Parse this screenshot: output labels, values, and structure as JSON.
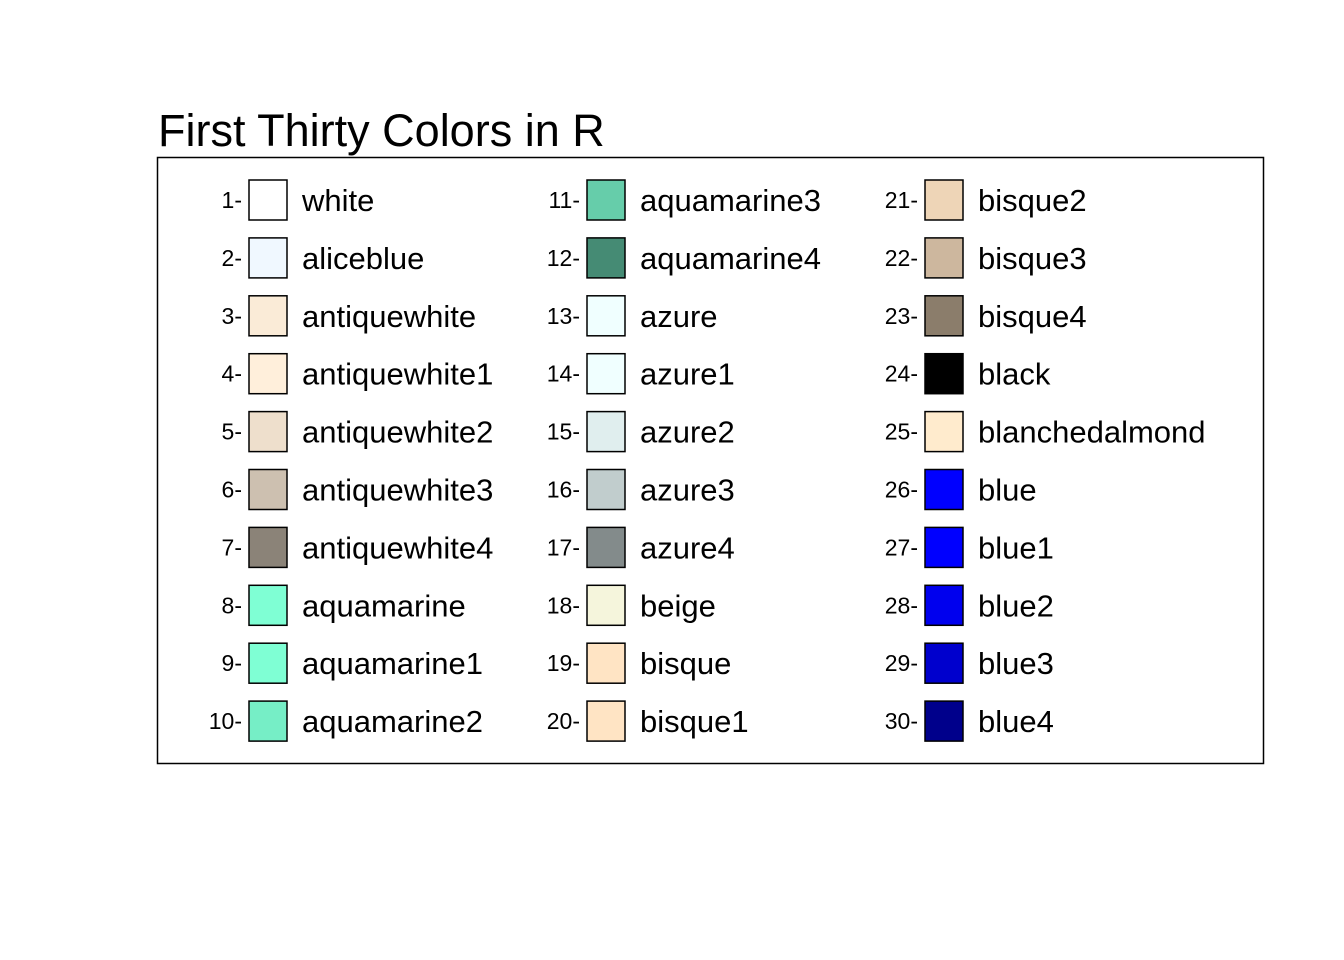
{
  "chart_data": {
    "type": "table",
    "title": "First Thirty Colors in R",
    "columns": 3,
    "rows_per_column": 10,
    "items": [
      {
        "index": 1,
        "label": "1-",
        "name": "white",
        "hex": "#FFFFFF"
      },
      {
        "index": 2,
        "label": "2-",
        "name": "aliceblue",
        "hex": "#F0F8FF"
      },
      {
        "index": 3,
        "label": "3-",
        "name": "antiquewhite",
        "hex": "#FAEBD7"
      },
      {
        "index": 4,
        "label": "4-",
        "name": "antiquewhite1",
        "hex": "#FFEFDB"
      },
      {
        "index": 5,
        "label": "5-",
        "name": "antiquewhite2",
        "hex": "#EEDFCC"
      },
      {
        "index": 6,
        "label": "6-",
        "name": "antiquewhite3",
        "hex": "#CDC0B0"
      },
      {
        "index": 7,
        "label": "7-",
        "name": "antiquewhite4",
        "hex": "#8B8378"
      },
      {
        "index": 8,
        "label": "8-",
        "name": "aquamarine",
        "hex": "#7FFFD4"
      },
      {
        "index": 9,
        "label": "9-",
        "name": "aquamarine1",
        "hex": "#7FFFD4"
      },
      {
        "index": 10,
        "label": "10-",
        "name": "aquamarine2",
        "hex": "#76EEC6"
      },
      {
        "index": 11,
        "label": "11-",
        "name": "aquamarine3",
        "hex": "#66CDAA"
      },
      {
        "index": 12,
        "label": "12-",
        "name": "aquamarine4",
        "hex": "#458B74"
      },
      {
        "index": 13,
        "label": "13-",
        "name": "azure",
        "hex": "#F0FFFF"
      },
      {
        "index": 14,
        "label": "14-",
        "name": "azure1",
        "hex": "#F0FFFF"
      },
      {
        "index": 15,
        "label": "15-",
        "name": "azure2",
        "hex": "#E0EEEE"
      },
      {
        "index": 16,
        "label": "16-",
        "name": "azure3",
        "hex": "#C1CDCD"
      },
      {
        "index": 17,
        "label": "17-",
        "name": "azure4",
        "hex": "#838B8B"
      },
      {
        "index": 18,
        "label": "18-",
        "name": "beige",
        "hex": "#F5F5DC"
      },
      {
        "index": 19,
        "label": "19-",
        "name": "bisque",
        "hex": "#FFE4C4"
      },
      {
        "index": 20,
        "label": "20-",
        "name": "bisque1",
        "hex": "#FFE4C4"
      },
      {
        "index": 21,
        "label": "21-",
        "name": "bisque2",
        "hex": "#EED5B7"
      },
      {
        "index": 22,
        "label": "22-",
        "name": "bisque3",
        "hex": "#CDB79E"
      },
      {
        "index": 23,
        "label": "23-",
        "name": "bisque4",
        "hex": "#8B7D6B"
      },
      {
        "index": 24,
        "label": "24-",
        "name": "black",
        "hex": "#000000"
      },
      {
        "index": 25,
        "label": "25-",
        "name": "blanchedalmond",
        "hex": "#FFEBCD"
      },
      {
        "index": 26,
        "label": "26-",
        "name": "blue",
        "hex": "#0000FF"
      },
      {
        "index": 27,
        "label": "27-",
        "name": "blue1",
        "hex": "#0000FF"
      },
      {
        "index": 28,
        "label": "28-",
        "name": "blue2",
        "hex": "#0000EE"
      },
      {
        "index": 29,
        "label": "29-",
        "name": "blue3",
        "hex": "#0000CD"
      },
      {
        "index": 30,
        "label": "30-",
        "name": "blue4",
        "hex": "#00008B"
      }
    ]
  }
}
